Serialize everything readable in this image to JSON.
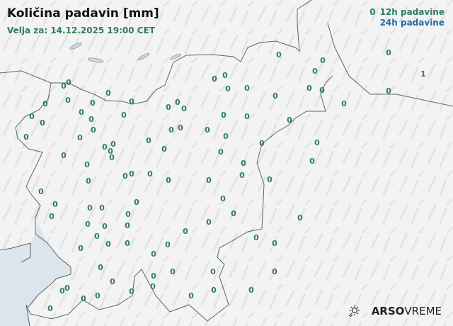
{
  "header": {
    "title": "Količina padavin [mm]",
    "valid_for": "Velja za: 14.12.2025 19:00 CET"
  },
  "legend": {
    "sample_value": "0",
    "item_12h": "12h padavine",
    "item_24h": "24h padavine",
    "color_12h": "#2e7d5b",
    "color_24h": "#1f6aa5"
  },
  "brand": {
    "icon": "sun-rain-icon",
    "name_bold": "ARSO",
    "name_light": "VREME"
  },
  "stations": {
    "unit": "mm",
    "period": "12h",
    "values": [
      "0",
      "0",
      "0",
      "0",
      "1",
      "0",
      "0",
      "0",
      "0",
      "0",
      "0",
      "0",
      "0",
      "0",
      "0",
      "0",
      "0",
      "0",
      "0",
      "0",
      "0",
      "0",
      "0",
      "0",
      "0",
      "0",
      "0",
      "0",
      "0",
      "0",
      "0",
      "0",
      "0",
      "0",
      "0",
      "0",
      "0",
      "0",
      "0",
      "0",
      "0",
      "0",
      "0",
      "0",
      "0",
      "0",
      "0",
      "0",
      "0",
      "0",
      "0",
      "0",
      "0",
      "0",
      "0",
      "0",
      "0",
      "0",
      "0",
      "0",
      "0",
      "0",
      "0",
      "0",
      "0",
      "0",
      "0",
      "0",
      "0",
      "0",
      "0",
      "0",
      "0",
      "0",
      "0",
      "0",
      "0",
      "0",
      "0",
      "0",
      "0",
      "0",
      "0",
      "0",
      "0",
      "0",
      "0",
      "0",
      "0",
      "0",
      "0",
      "0",
      "0",
      "0",
      "0",
      "0",
      "0",
      "0",
      "0",
      "0",
      "0",
      "0",
      "0",
      "0"
    ]
  }
}
